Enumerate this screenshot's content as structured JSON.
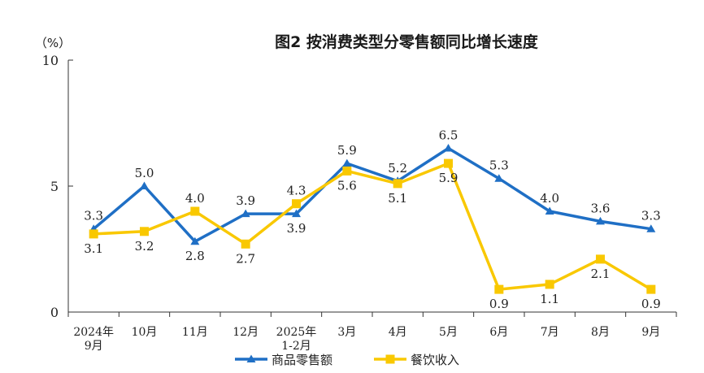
{
  "chart_data": {
    "type": "line",
    "title": "图2  按消费类型分零售额同比增长速度",
    "unit_label": "（%）",
    "categories": [
      [
        "2024年",
        "9月"
      ],
      [
        "10月"
      ],
      [
        "11月"
      ],
      [
        "12月"
      ],
      [
        "2025年",
        "1-2月"
      ],
      [
        "3月"
      ],
      [
        "4月"
      ],
      [
        "5月"
      ],
      [
        "6月"
      ],
      [
        "7月"
      ],
      [
        "8月"
      ],
      [
        "9月"
      ]
    ],
    "ylim": [
      0,
      10
    ],
    "yticks": [
      0,
      5,
      10
    ],
    "grid": false,
    "legend_position": "bottom",
    "series": [
      {
        "name": "商品零售额",
        "color": "#1f6fc5",
        "marker": "triangle",
        "values": [
          3.3,
          5.0,
          2.8,
          3.9,
          3.9,
          5.9,
          5.2,
          6.5,
          5.3,
          4.0,
          3.6,
          3.3
        ],
        "labels": [
          "3.3",
          "5.0",
          "2.8",
          "3.9",
          "3.9",
          "5.9",
          "5.2",
          "6.5",
          "5.3",
          "4.0",
          "3.6",
          "3.3"
        ],
        "label_side": [
          "above",
          "above",
          "below",
          "above",
          "below",
          "above",
          "above",
          "above",
          "above",
          "above",
          "above",
          "above"
        ]
      },
      {
        "name": "餐饮收入",
        "color": "#f9c800",
        "marker": "square",
        "values": [
          3.1,
          3.2,
          4.0,
          2.7,
          4.3,
          5.6,
          5.1,
          5.9,
          0.9,
          1.1,
          2.1,
          0.9
        ],
        "labels": [
          "3.1",
          "3.2",
          "4.0",
          "2.7",
          "4.3",
          "5.6",
          "5.1",
          "5.9",
          "0.9",
          "1.1",
          "2.1",
          "0.9"
        ],
        "label_side": [
          "below",
          "below",
          "above",
          "below",
          "above",
          "below",
          "below",
          "below",
          "below",
          "below",
          "below",
          "below"
        ]
      }
    ]
  }
}
